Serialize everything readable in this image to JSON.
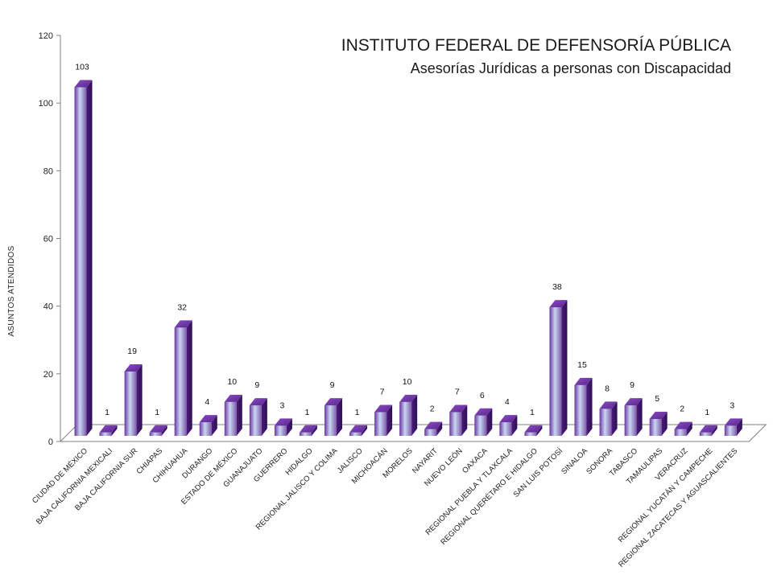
{
  "chart_data": {
    "type": "bar",
    "title": "INSTITUTO FEDERAL DE DEFENSORÍA PÚBLICA",
    "subtitle": "Asesorías Jurídicas a personas con Discapacidad",
    "xlabel": "",
    "ylabel": "ASUNTOS  ATENDIDOS",
    "ylim": [
      0,
      120
    ],
    "yticks": [
      0,
      20,
      40,
      60,
      80,
      100,
      120
    ],
    "grid": false,
    "legend": "none",
    "categories": [
      "CIUDAD DE MÉXICO",
      "BAJA CALIFORNIA MEXICALI",
      "BAJA CALIFORNIA SUR",
      "CHIAPAS",
      "CHIHUAHUA",
      "DURANGO",
      "ESTADO DE MÉXICO",
      "GUANAJUATO",
      "GUERRERO",
      "HIDALGO",
      "REGIONAL JALISCO Y COLIMA",
      "JALISCO",
      "MICHOACÁN",
      "MORELOS",
      "NAYARIT",
      "NUEVO LEÓN",
      "OAXACA",
      "REGIONAL PUEBLA Y TLAXCALA",
      "REGIONAL QUERÉTARO E HIDALGO",
      "SAN LUIS POTOSÍ",
      "SINALOA",
      "SONORA",
      "TABASCO",
      "TAMAULIPAS",
      "VERACRUZ",
      "REGIONAL YUCATÁN Y CAMPECHE",
      "REGIONAL ZACATECAS Y AGUASCALIENTES"
    ],
    "values": [
      103,
      1,
      19,
      1,
      32,
      4,
      10,
      9,
      3,
      1,
      9,
      1,
      7,
      10,
      2,
      7,
      6,
      4,
      1,
      38,
      15,
      8,
      9,
      5,
      2,
      1,
      3
    ],
    "colors": {
      "bar_dark": "#4b1b7a",
      "bar_mid": "#7a3fb0",
      "bar_light": "#c9d6f3",
      "axis": "#808080"
    }
  }
}
